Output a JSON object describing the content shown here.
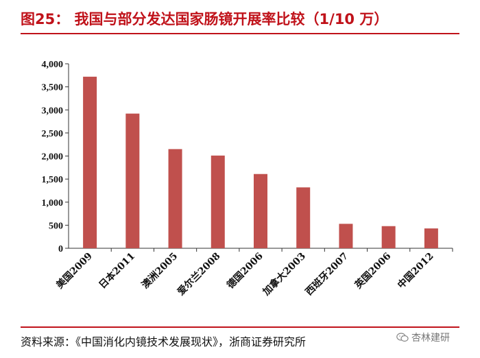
{
  "title": "图25： 我国与部分发达国家肠镜开展率比较（1/10 万）",
  "source": "资料来源：《中国消化内镜技术发展现状》，浙商证券研究所",
  "watermark": "杏林建研",
  "colors": {
    "accent": "#c0121a",
    "bar": "#c0504d"
  },
  "chart_data": {
    "type": "bar",
    "categories": [
      "美国2009",
      "日本2011",
      "澳洲2005",
      "爱尔兰2008",
      "德国2006",
      "加拿大2003",
      "西班牙2007",
      "英国2006",
      "中国2012"
    ],
    "values": [
      3720,
      2920,
      2150,
      2010,
      1610,
      1320,
      530,
      480,
      430
    ],
    "yticks": [
      "0",
      "500",
      "1,000",
      "1,500",
      "2,000",
      "2,500",
      "3,000",
      "3,500",
      "4,000"
    ],
    "ylim": [
      0,
      4000
    ],
    "title": "",
    "xlabel": "",
    "ylabel": ""
  }
}
